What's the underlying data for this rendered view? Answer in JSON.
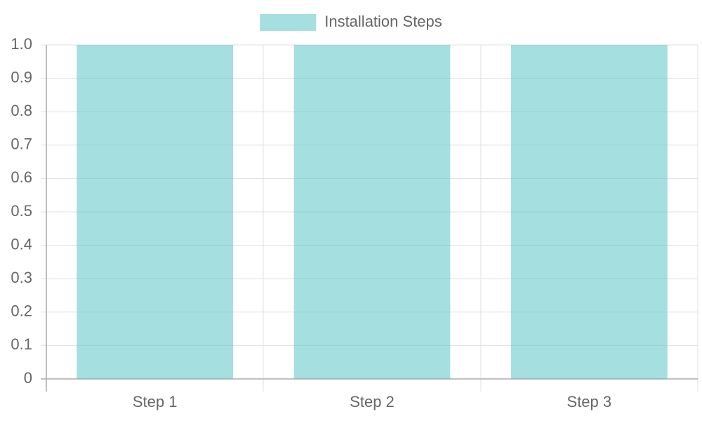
{
  "chart_data": {
    "type": "bar",
    "categories": [
      "Step 1",
      "Step 2",
      "Step 3"
    ],
    "series": [
      {
        "name": "Installation Steps",
        "color": "rgba(75, 192, 192, 0.5)",
        "values": [
          1,
          1,
          1
        ]
      }
    ],
    "ylim": [
      0,
      1
    ],
    "yticks": [
      0,
      0.1,
      0.2,
      0.3,
      0.4,
      0.5,
      0.6,
      0.7,
      0.8,
      0.9,
      {
        "value": 1,
        "label": "1.0"
      }
    ],
    "grid": true,
    "legend": "top"
  }
}
